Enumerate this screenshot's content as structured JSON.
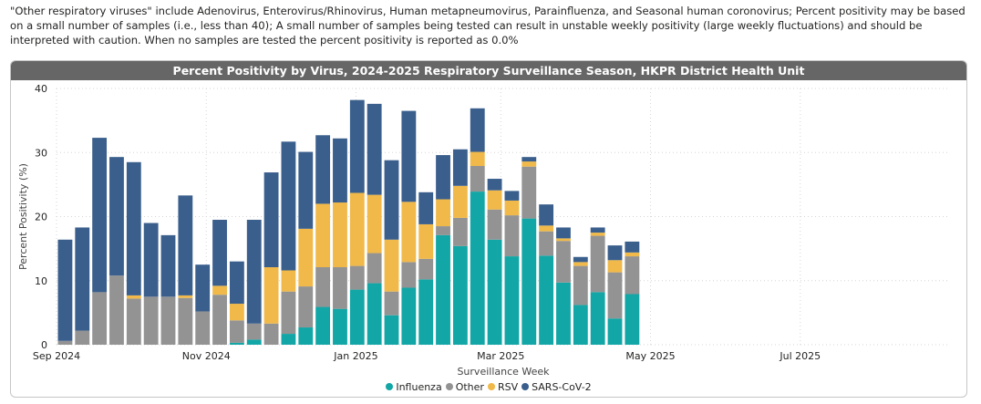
{
  "note": "\"Other respiratory viruses\" include Adenovirus, Enterovirus/Rhinovirus, Human metapneumovirus, Parainfluenza, and Seasonal human coronovirus; Percent positivity may be based on a small number of samples (i.e., less than 40); A small number of samples being tested can result in unstable weekly positivity (large weekly fluctuations) and should be interpreted with caution. When no samples are tested the percent positivity is reported as 0.0%",
  "colors": {
    "Influenza": "#12a6a6",
    "Other": "#939393",
    "RSV": "#f0b94a",
    "SARS-CoV-2": "#3a5f8c"
  },
  "chart_data": {
    "type": "bar",
    "stacked": true,
    "title": "Percent Positivity by Virus, 2024-2025 Respiratory Surveillance Season, HKPR District Health Unit",
    "xlabel": "Surveillance Week",
    "ylabel": "Percent Positivity (%)",
    "ylim": [
      0,
      40
    ],
    "yticks": [
      0,
      10,
      20,
      30,
      40
    ],
    "xlim": [
      "2024-09-01",
      "2025-08-31"
    ],
    "xticks": [
      {
        "date": "2024-09-01",
        "label": "Sep 2024"
      },
      {
        "date": "2024-11-01",
        "label": "Nov 2024"
      },
      {
        "date": "2025-01-01",
        "label": "Jan 2025"
      },
      {
        "date": "2025-03-01",
        "label": "Mar 2025"
      },
      {
        "date": "2025-05-01",
        "label": "May 2025"
      },
      {
        "date": "2025-07-01",
        "label": "Jul 2025"
      }
    ],
    "grid": true,
    "legend_position": "bottom",
    "series_order": [
      "Influenza",
      "Other",
      "RSV",
      "SARS-CoV-2"
    ],
    "weeks": [
      "2024-09-01",
      "2024-09-08",
      "2024-09-15",
      "2024-09-22",
      "2024-09-29",
      "2024-10-06",
      "2024-10-13",
      "2024-10-20",
      "2024-10-27",
      "2024-11-03",
      "2024-11-10",
      "2024-11-17",
      "2024-11-24",
      "2024-12-01",
      "2024-12-08",
      "2024-12-15",
      "2024-12-22",
      "2024-12-29",
      "2025-01-05",
      "2025-01-12",
      "2025-01-19",
      "2025-01-26",
      "2025-02-02",
      "2025-02-09",
      "2025-02-16",
      "2025-02-23",
      "2025-03-02",
      "2025-03-09",
      "2025-03-16",
      "2025-03-23",
      "2025-03-30",
      "2025-04-06",
      "2025-04-13",
      "2025-04-20"
    ],
    "series": [
      {
        "name": "Influenza",
        "values": [
          0,
          0,
          0,
          0,
          0,
          0,
          0,
          0,
          0,
          0,
          0.3,
          0.8,
          0,
          1.7,
          2.7,
          5.9,
          5.6,
          8.6,
          9.6,
          4.6,
          8.9,
          10.2,
          17.1,
          15.4,
          23.9,
          16.4,
          13.8,
          19.7,
          13.9,
          9.7,
          6.2,
          8.2,
          4.1,
          7.9
        ]
      },
      {
        "name": "Other",
        "values": [
          0.6,
          2.2,
          8.2,
          10.8,
          7.2,
          7.5,
          7.5,
          7.3,
          5.2,
          7.8,
          3.5,
          2.5,
          3.3,
          6.6,
          6.4,
          6.2,
          6.5,
          3.7,
          4.7,
          3.7,
          4.0,
          3.2,
          1.4,
          4.4,
          4.0,
          4.7,
          6.4,
          8.1,
          3.8,
          6.5,
          6.1,
          8.8,
          7.2,
          5.9
        ]
      },
      {
        "name": "RSV",
        "values": [
          0,
          0,
          0,
          0,
          0.5,
          0,
          0,
          0.4,
          0,
          1.4,
          2.6,
          0,
          8.8,
          3.3,
          9.0,
          9.9,
          10.1,
          11.4,
          9.1,
          8.1,
          9.4,
          5.4,
          4.2,
          5.0,
          2.2,
          3.0,
          2.3,
          0.8,
          0.9,
          0.4,
          0.6,
          0.5,
          1.9,
          0.6
        ]
      },
      {
        "name": "SARS-CoV-2",
        "values": [
          15.8,
          16.1,
          24.1,
          18.5,
          20.8,
          11.5,
          9.6,
          15.6,
          7.3,
          10.3,
          6.6,
          16.2,
          14.8,
          20.1,
          12.0,
          10.7,
          10.0,
          14.5,
          14.2,
          12.4,
          14.2,
          5.0,
          6.9,
          5.7,
          6.8,
          1.8,
          1.5,
          0.7,
          3.3,
          1.7,
          0.8,
          0.8,
          2.3,
          1.7
        ]
      }
    ]
  }
}
